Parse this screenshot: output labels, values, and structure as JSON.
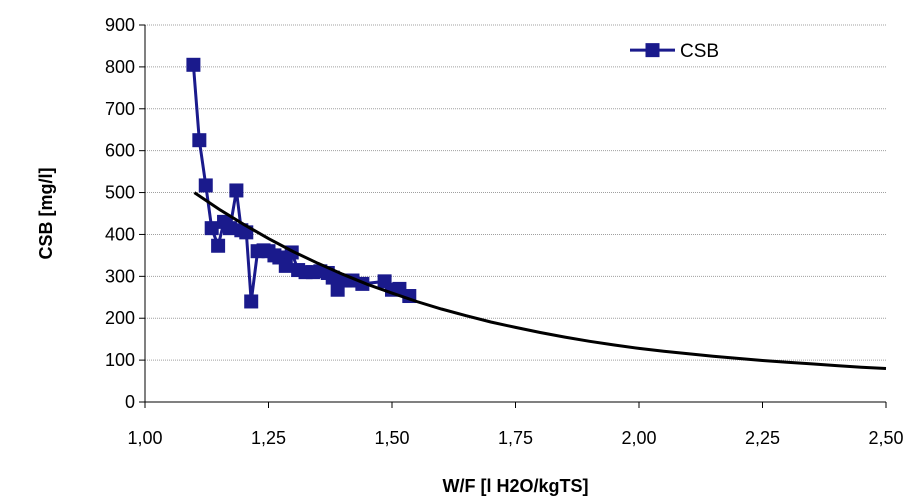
{
  "chart_data": {
    "type": "line",
    "xlabel": "W/F [l H2O/kgTS]",
    "ylabel": "CSB [mg/l]",
    "xlim": [
      1.0,
      2.5
    ],
    "ylim": [
      0,
      900
    ],
    "x_ticks": [
      "1,00",
      "1,25",
      "1,50",
      "1,75",
      "2,00",
      "2,25",
      "2,50"
    ],
    "x_tick_values": [
      1.0,
      1.25,
      1.5,
      1.75,
      2.0,
      2.25,
      2.5
    ],
    "y_ticks": [
      "0",
      "100",
      "200",
      "300",
      "400",
      "500",
      "600",
      "700",
      "800",
      "900"
    ],
    "y_tick_values": [
      0,
      100,
      200,
      300,
      400,
      500,
      600,
      700,
      800,
      900
    ],
    "grid": "horizontal",
    "legend": {
      "position": "top-right",
      "entries": [
        "CSB"
      ]
    },
    "series": [
      {
        "name": "CSB",
        "color": "#1a1a8c",
        "marker": "square",
        "x": [
          1.098,
          1.11,
          1.123,
          1.135,
          1.148,
          1.16,
          1.172,
          1.185,
          1.195,
          1.205,
          1.215,
          1.228,
          1.24,
          1.25,
          1.262,
          1.272,
          1.285,
          1.297,
          1.31,
          1.325,
          1.34,
          1.355,
          1.37,
          1.38,
          1.39,
          1.405,
          1.42,
          1.44,
          1.485,
          1.5,
          1.515,
          1.535
        ],
        "y": [
          805,
          625,
          517,
          415,
          373,
          430,
          415,
          505,
          410,
          405,
          240,
          360,
          362,
          360,
          350,
          345,
          325,
          357,
          315,
          310,
          310,
          312,
          308,
          297,
          268,
          290,
          290,
          282,
          288,
          268,
          270,
          253
        ]
      },
      {
        "name": "",
        "color": "#000000",
        "marker": "none",
        "trendline": true,
        "x": [
          1.1,
          1.15,
          1.2,
          1.25,
          1.3,
          1.35,
          1.4,
          1.45,
          1.5,
          1.55,
          1.6,
          1.65,
          1.7,
          1.75,
          1.8,
          1.85,
          1.9,
          1.95,
          2.0,
          2.05,
          2.1,
          2.15,
          2.2,
          2.25,
          2.3,
          2.35,
          2.4,
          2.45,
          2.5
        ],
        "y": [
          500,
          460,
          424,
          390,
          359,
          331,
          305,
          281,
          260,
          240,
          222,
          206,
          191,
          178,
          166,
          155,
          145,
          136,
          128,
          121,
          115,
          109,
          104,
          99,
          95,
          91,
          87,
          83,
          80
        ]
      }
    ]
  }
}
